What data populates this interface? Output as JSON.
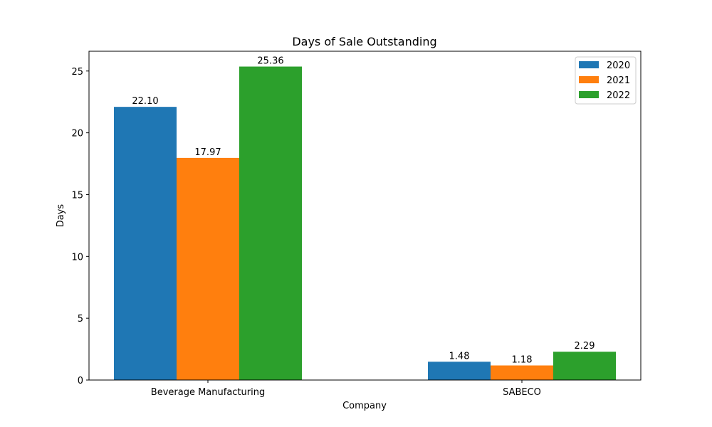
{
  "chart_data": {
    "type": "bar",
    "title": "Days of Sale Outstanding",
    "xlabel": "Company",
    "ylabel": "Days",
    "categories": [
      "Beverage Manufacturing",
      "SABECO"
    ],
    "series": [
      {
        "name": "2020",
        "color": "#1f77b4",
        "values": [
          22.1,
          1.48
        ],
        "labels": [
          "22.10",
          "1.48"
        ]
      },
      {
        "name": "2021",
        "color": "#ff7f0e",
        "values": [
          17.97,
          1.18
        ],
        "labels": [
          "17.97",
          "1.18"
        ]
      },
      {
        "name": "2022",
        "color": "#2ca02c",
        "values": [
          25.36,
          2.29
        ],
        "labels": [
          "25.36",
          "2.29"
        ]
      }
    ],
    "ylim": [
      0,
      26.6
    ],
    "yticks": [
      0,
      5,
      10,
      15,
      20,
      25
    ],
    "grid": false,
    "legend_position": "top-right"
  }
}
